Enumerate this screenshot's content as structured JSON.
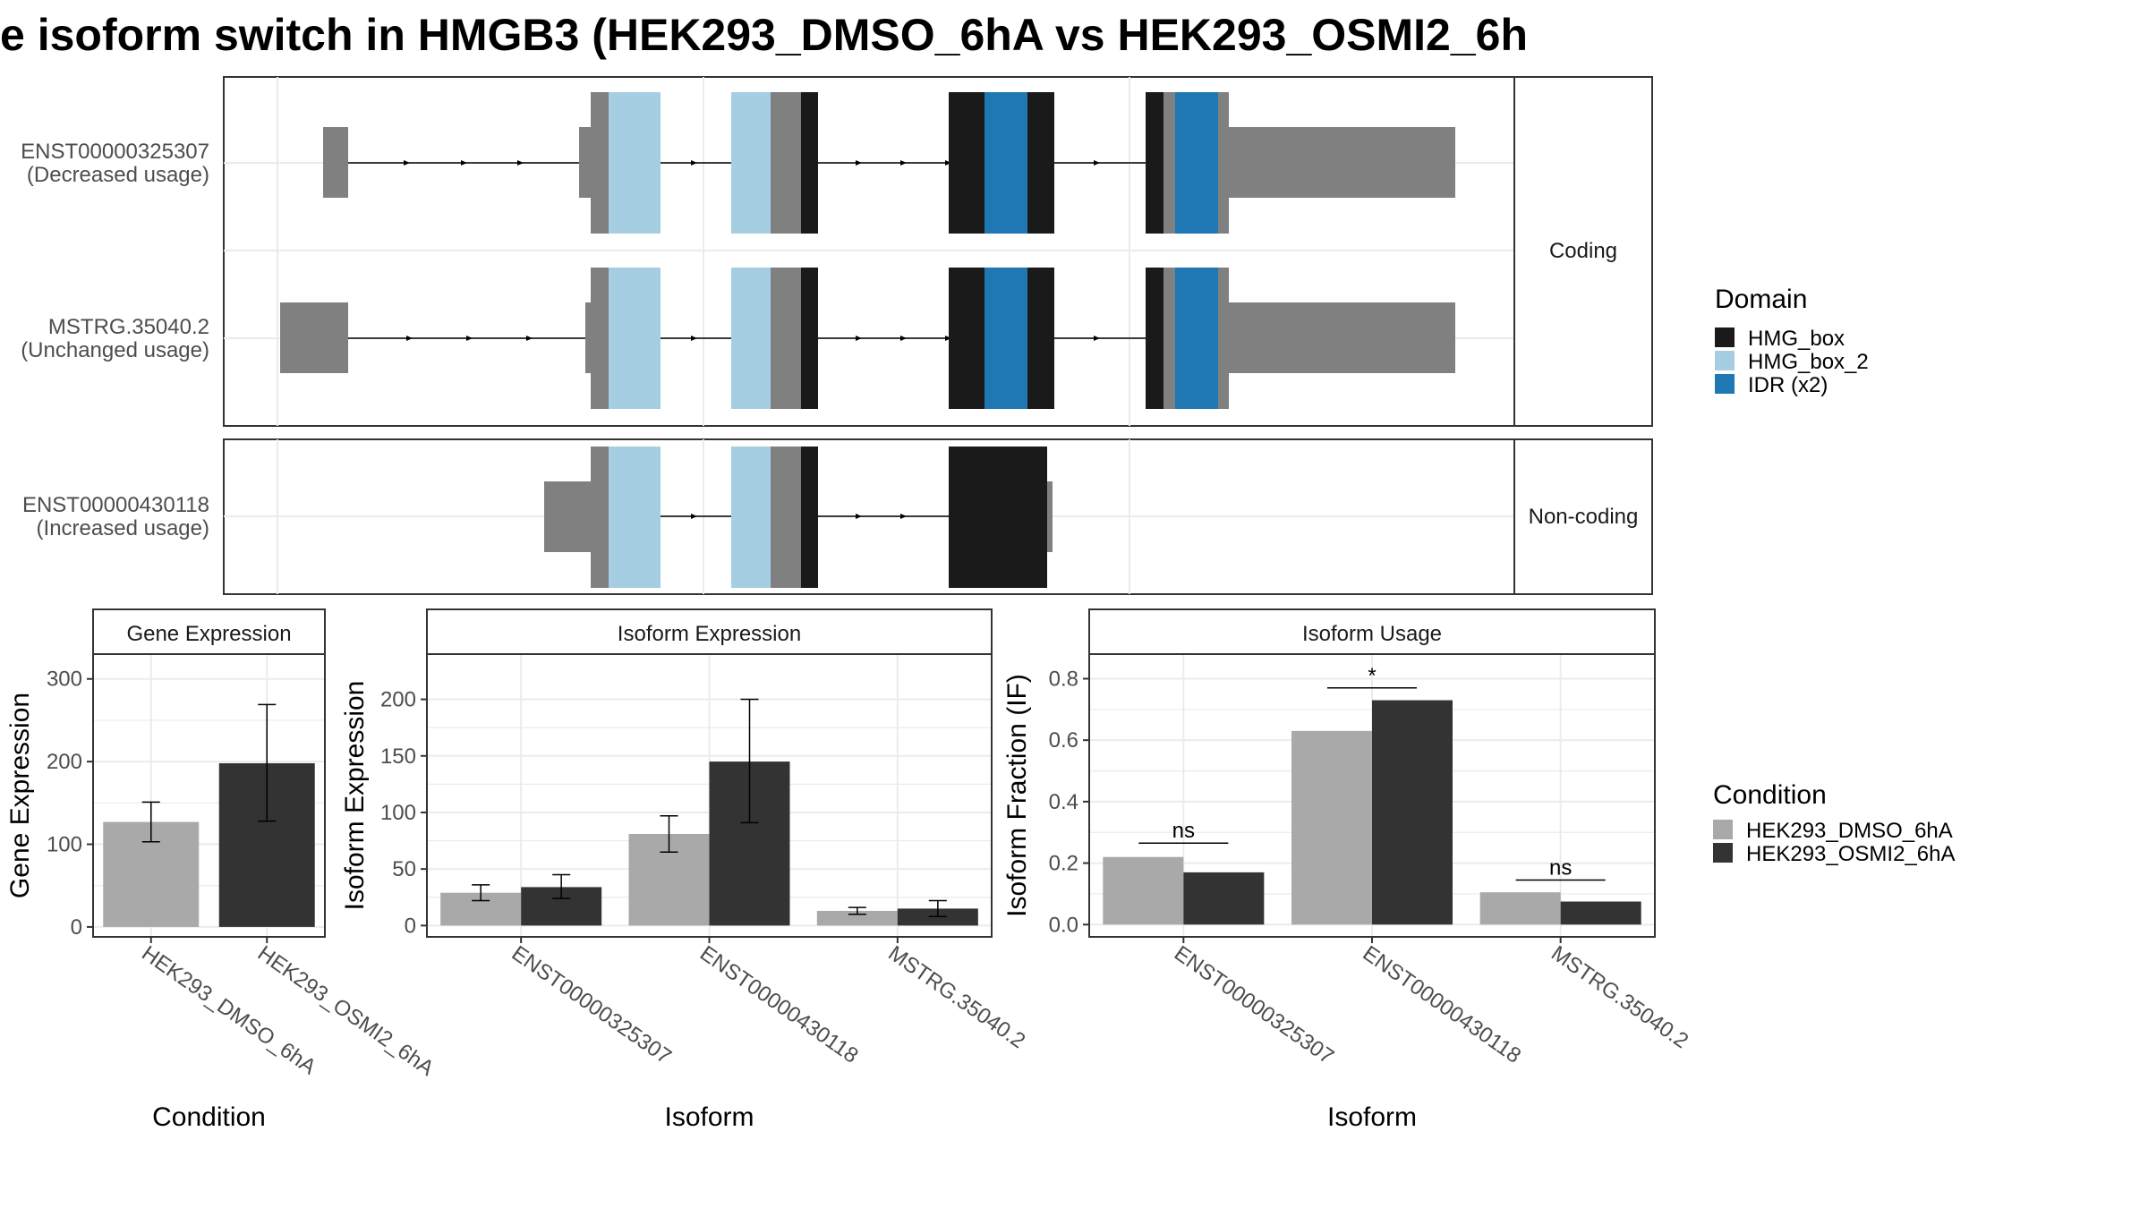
{
  "title": "e isoform switch in HMGB3 (HEK293_DMSO_6hA vs HEK293_OSMI2_6h",
  "colors": {
    "utr": "#808080",
    "hmg_box": "#1a1a1a",
    "hmg_box_2": "#a6cee3",
    "idr": "#1f78b4",
    "dmso": "#a9a9a9",
    "osmi2": "#333333",
    "grid": "#ebebeb",
    "strip": "#ffffff"
  },
  "structure": {
    "coding_facet": "Coding",
    "noncoding_facet": "Non-coding",
    "transcripts": [
      {
        "id": "ENST00000325307",
        "usage": "(Decreased usage)"
      },
      {
        "id": "MSTRG.35040.2",
        "usage": "(Unchanged usage)"
      },
      {
        "id": "ENST00000430118",
        "usage": "(Increased usage)"
      }
    ]
  },
  "legends": {
    "domain": {
      "title": "Domain",
      "items": [
        "HMG_box",
        "HMG_box_2",
        "IDR (x2)"
      ]
    },
    "condition": {
      "title": "Condition",
      "items": [
        "HEK293_DMSO_6hA",
        "HEK293_OSMI2_6hA"
      ]
    }
  },
  "chart_data": [
    {
      "type": "bar",
      "title": "Gene Expression",
      "xlabel": "Condition",
      "ylabel": "Gene Expression",
      "categories": [
        "HEK293_DMSO_6hA",
        "HEK293_OSMI2_6hA"
      ],
      "values": [
        127,
        198
      ],
      "err_low": [
        103,
        128
      ],
      "err_high": [
        151,
        269
      ],
      "ylim": [
        -12,
        330
      ],
      "yticks": [
        0,
        100,
        200,
        300
      ]
    },
    {
      "type": "bar",
      "title": "Isoform Expression",
      "xlabel": "Isoform",
      "ylabel": "Isoform Expression",
      "categories": [
        "ENST00000325307",
        "ENST00000430118",
        "MSTRG.35040.2"
      ],
      "series": [
        {
          "name": "HEK293_DMSO_6hA",
          "values": [
            29,
            81,
            13
          ],
          "err_low": [
            22,
            65,
            10
          ],
          "err_high": [
            36,
            97,
            16
          ]
        },
        {
          "name": "HEK293_OSMI2_6hA",
          "values": [
            34,
            145,
            15
          ],
          "err_low": [
            24,
            91,
            8
          ],
          "err_high": [
            45,
            200,
            22
          ]
        }
      ],
      "ylim": [
        -10,
        240
      ],
      "yticks": [
        0,
        50,
        100,
        150,
        200
      ]
    },
    {
      "type": "bar",
      "title": "Isoform Usage",
      "xlabel": "Isoform",
      "ylabel": "Isoform Fraction (IF)",
      "categories": [
        "ENST00000325307",
        "ENST00000430118",
        "MSTRG.35040.2"
      ],
      "series": [
        {
          "name": "HEK293_DMSO_6hA",
          "values": [
            0.22,
            0.63,
            0.105
          ]
        },
        {
          "name": "HEK293_OSMI2_6hA",
          "values": [
            0.17,
            0.73,
            0.075
          ]
        }
      ],
      "significance": [
        "ns",
        "*",
        "ns"
      ],
      "sig_y": [
        0.265,
        0.77,
        0.145
      ],
      "ylim": [
        -0.04,
        0.88
      ],
      "yticks": [
        0.0,
        0.2,
        0.4,
        0.6,
        0.8
      ],
      "ytick_labels": [
        "0.0",
        "0.2",
        "0.4",
        "0.6",
        "0.8"
      ]
    }
  ]
}
